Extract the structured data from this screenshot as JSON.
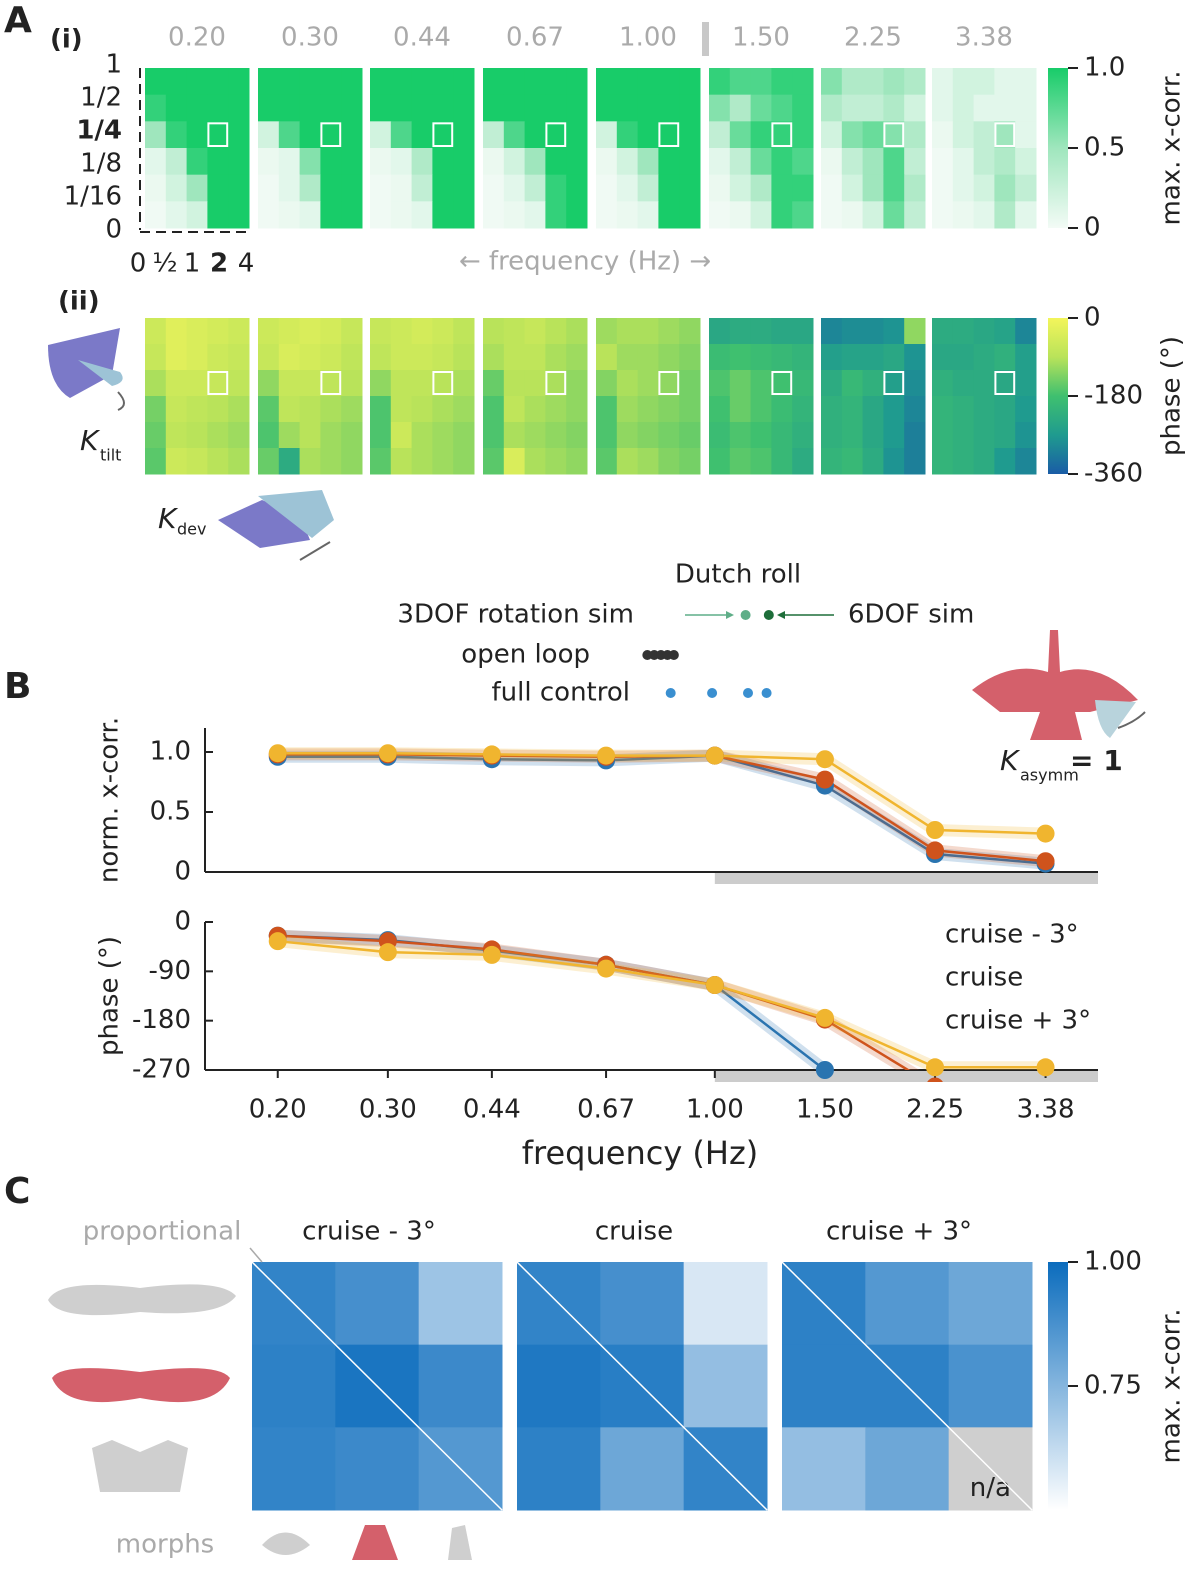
{
  "chart_data": [
    {
      "type": "heatmap",
      "label": "A",
      "sublabel": "(i)",
      "panel_titles": [
        "0.20",
        "0.30",
        "0.44",
        "0.67",
        "1.00",
        "1.50",
        "2.25",
        "3.38"
      ],
      "y_categories": [
        "1",
        "1/2",
        "1/4",
        "1/8",
        "1/16",
        "0"
      ],
      "x_categories": [
        "0",
        "½",
        "1",
        "2",
        "4"
      ],
      "xlabel": "← frequency (Hz) →",
      "colorbar_label": "max. x-corr.",
      "clim": [
        0,
        1
      ],
      "cticks": [
        {
          "value": 1,
          "label": "1.0"
        },
        0.5,
        0
      ],
      "colors": [
        "#f3fbf6",
        "#9fe6bd",
        "#18cc69"
      ],
      "panels": [
        [
          [
            1,
            1,
            1,
            1,
            1
          ],
          [
            0.9,
            1,
            1,
            1,
            1
          ],
          [
            0.5,
            0.9,
            1,
            1,
            1
          ],
          [
            0.1,
            0.3,
            0.9,
            1,
            1
          ],
          [
            0.05,
            0.2,
            0.5,
            1,
            1
          ],
          [
            0.02,
            0.1,
            0.2,
            1,
            1
          ]
        ],
        [
          [
            1,
            1,
            1,
            1,
            1
          ],
          [
            1,
            1,
            1,
            1,
            1
          ],
          [
            0.2,
            0.8,
            1,
            1,
            1
          ],
          [
            0.05,
            0.1,
            0.6,
            1,
            1
          ],
          [
            0.02,
            0.1,
            0.4,
            1,
            1
          ],
          [
            0.02,
            0.05,
            0.1,
            1,
            1
          ]
        ],
        [
          [
            1,
            1,
            1,
            1,
            1
          ],
          [
            1,
            1,
            1,
            1,
            1
          ],
          [
            0.2,
            0.8,
            1,
            1,
            1
          ],
          [
            0.05,
            0.1,
            0.4,
            1,
            1
          ],
          [
            0.02,
            0.05,
            0.3,
            1,
            1
          ],
          [
            0.02,
            0.05,
            0.1,
            1,
            1
          ]
        ],
        [
          [
            1,
            1,
            1,
            1,
            1
          ],
          [
            1,
            1,
            1,
            1,
            1
          ],
          [
            0.3,
            0.8,
            1,
            1,
            1
          ],
          [
            0.05,
            0.2,
            0.5,
            1,
            1
          ],
          [
            0.02,
            0.1,
            0.3,
            0.9,
            1
          ],
          [
            0.02,
            0.05,
            0.1,
            0.9,
            1
          ]
        ],
        [
          [
            1,
            1,
            1,
            1,
            1
          ],
          [
            1,
            1,
            1,
            1,
            1
          ],
          [
            0.2,
            0.9,
            1,
            1,
            1
          ],
          [
            0.05,
            0.2,
            0.5,
            1,
            1
          ],
          [
            0.02,
            0.1,
            0.3,
            1,
            1
          ],
          [
            0.02,
            0.05,
            0.1,
            1,
            1
          ]
        ],
        [
          [
            0.9,
            0.8,
            0.8,
            0.9,
            0.9
          ],
          [
            0.6,
            0.4,
            0.7,
            0.8,
            0.9
          ],
          [
            0.3,
            0.7,
            0.9,
            0.9,
            0.9
          ],
          [
            0.1,
            0.3,
            0.7,
            0.9,
            0.8
          ],
          [
            0.05,
            0.2,
            0.4,
            0.9,
            0.9
          ],
          [
            0.02,
            0.05,
            0.2,
            0.9,
            0.8
          ]
        ],
        [
          [
            0.6,
            0.4,
            0.4,
            0.5,
            0.4
          ],
          [
            0.4,
            0.3,
            0.3,
            0.4,
            0.2
          ],
          [
            0.2,
            0.6,
            0.7,
            0.6,
            0.4
          ],
          [
            0.05,
            0.3,
            0.5,
            0.8,
            0.3
          ],
          [
            0.02,
            0.2,
            0.5,
            0.8,
            0.4
          ],
          [
            0.02,
            0.05,
            0.2,
            0.7,
            0.3
          ]
        ],
        [
          [
            0.1,
            0.2,
            0.2,
            0.1,
            0.1
          ],
          [
            0.1,
            0.2,
            0.1,
            0.1,
            0.1
          ],
          [
            0.05,
            0.2,
            0.3,
            0.5,
            0.1
          ],
          [
            0.02,
            0.1,
            0.3,
            0.4,
            0.2
          ],
          [
            0.02,
            0.1,
            0.2,
            0.5,
            0.3
          ],
          [
            0.02,
            0.05,
            0.1,
            0.4,
            0.1
          ]
        ]
      ]
    },
    {
      "type": "heatmap",
      "sublabel": "(ii)",
      "colorbar_label": "phase (°)",
      "clim": [
        -360,
        0
      ],
      "cticks": [
        0,
        -180,
        -360
      ],
      "colors": [
        "#1a5ca6",
        "#1f9b8f",
        "#3fc06f",
        "#b9e35a",
        "#f3f55b"
      ],
      "annotations": [
        {
          "symbol": "K",
          "subscript": "tilt"
        },
        {
          "symbol": "K",
          "subscript": "dev"
        }
      ],
      "panels": [
        [
          [
            -60,
            -30,
            -40,
            -50,
            -60
          ],
          [
            -70,
            -30,
            -40,
            -60,
            -70
          ],
          [
            -100,
            -60,
            -60,
            -70,
            -80
          ],
          [
            -140,
            -70,
            -80,
            -90,
            -100
          ],
          [
            -150,
            -80,
            -90,
            -100,
            -110
          ],
          [
            -160,
            -60,
            -70,
            -90,
            -100
          ]
        ],
        [
          [
            -60,
            -50,
            -40,
            -50,
            -70
          ],
          [
            -70,
            -40,
            -50,
            -60,
            -80
          ],
          [
            -120,
            -70,
            -70,
            -80,
            -90
          ],
          [
            -160,
            -80,
            -90,
            -100,
            -110
          ],
          [
            -170,
            -110,
            -90,
            -110,
            -120
          ],
          [
            -150,
            -230,
            -100,
            -110,
            -120
          ]
        ],
        [
          [
            -70,
            -60,
            -50,
            -60,
            -80
          ],
          [
            -80,
            -60,
            -60,
            -70,
            -90
          ],
          [
            -120,
            -80,
            -80,
            -90,
            -100
          ],
          [
            -170,
            -80,
            -90,
            -100,
            -110
          ],
          [
            -170,
            -60,
            -100,
            -110,
            -120
          ],
          [
            -160,
            -90,
            -100,
            -110,
            -120
          ]
        ],
        [
          [
            -90,
            -80,
            -70,
            -90,
            -100
          ],
          [
            -100,
            -80,
            -80,
            -100,
            -110
          ],
          [
            -150,
            -90,
            -90,
            -100,
            -120
          ],
          [
            -170,
            -80,
            -100,
            -110,
            -120
          ],
          [
            -170,
            -100,
            -110,
            -120,
            -130
          ],
          [
            -160,
            -40,
            -100,
            -110,
            -120
          ]
        ],
        [
          [
            -110,
            -100,
            -100,
            -110,
            -120
          ],
          [
            -90,
            -110,
            -110,
            -120,
            -130
          ],
          [
            -130,
            -100,
            -110,
            -120,
            -140
          ],
          [
            -170,
            -110,
            -120,
            -130,
            -140
          ],
          [
            -170,
            -120,
            -130,
            -140,
            -150
          ],
          [
            -160,
            -100,
            -110,
            -130,
            -140
          ]
        ],
        [
          [
            -240,
            -230,
            -230,
            -240,
            -240
          ],
          [
            -190,
            -180,
            -190,
            -200,
            -210
          ],
          [
            -170,
            -150,
            -170,
            -180,
            -200
          ],
          [
            -180,
            -150,
            -170,
            -190,
            -210
          ],
          [
            -190,
            -170,
            -180,
            -200,
            -220
          ],
          [
            -180,
            -160,
            -170,
            -200,
            -230
          ]
        ],
        [
          [
            -300,
            -290,
            -290,
            -280,
            -120
          ],
          [
            -260,
            -250,
            -250,
            -240,
            -280
          ],
          [
            -230,
            -200,
            -220,
            -260,
            -290
          ],
          [
            -220,
            -210,
            -240,
            -270,
            -300
          ],
          [
            -220,
            -210,
            -240,
            -270,
            -310
          ],
          [
            -210,
            -200,
            -230,
            -280,
            -310
          ]
        ],
        [
          [
            -230,
            -230,
            -240,
            -250,
            -300
          ],
          [
            -240,
            -240,
            -230,
            -220,
            -260
          ],
          [
            -220,
            -230,
            -230,
            -240,
            -260
          ],
          [
            -210,
            -220,
            -230,
            -240,
            -270
          ],
          [
            -210,
            -220,
            -230,
            -240,
            -280
          ],
          [
            -210,
            -220,
            -230,
            -270,
            -300
          ]
        ]
      ]
    },
    {
      "type": "dot",
      "title": "Dutch roll",
      "xscale": "log",
      "xlim": [
        0.153,
        4.1
      ],
      "series": [
        {
          "name": "3DOF rotation sim",
          "color": "#5fae88",
          "x": [
            1.12
          ]
        },
        {
          "name": "6DOF sim",
          "color": "#1e6e3a",
          "x": [
            1.22
          ]
        },
        {
          "name": "open loop",
          "color": "#333333",
          "x": [
            0.78,
            0.8,
            0.82,
            0.84,
            0.86
          ]
        },
        {
          "name": "full control",
          "color": "#3a8fd0",
          "x": [
            0.85,
            0.99,
            1.13,
            1.21
          ]
        }
      ]
    },
    {
      "type": "line",
      "label": "B",
      "ylabel": "norm. x-corr.",
      "xscale": "log",
      "xlim": [
        0.153,
        4.1
      ],
      "x": [
        0.2,
        0.3,
        0.44,
        0.67,
        1.0,
        1.5,
        2.25,
        3.38
      ],
      "ylim": [
        0,
        1.2
      ],
      "yticks": [
        0,
        0.5,
        {
          "value": 1,
          "label": "1.0"
        }
      ],
      "annotation": {
        "symbol": "K",
        "subscript": "asymm",
        "text": "= 1"
      },
      "series": [
        {
          "color": "#2a74b0",
          "values": [
            0.96,
            0.96,
            0.94,
            0.93,
            0.97,
            0.72,
            0.15,
            0.07
          ]
        },
        {
          "color": "#cf531c",
          "values": [
            0.98,
            0.98,
            0.97,
            0.96,
            0.97,
            0.77,
            0.18,
            0.09
          ]
        },
        {
          "color": "#f0b52f",
          "values": [
            0.99,
            0.99,
            0.98,
            0.97,
            0.97,
            0.94,
            0.35,
            0.32
          ]
        }
      ]
    },
    {
      "type": "line",
      "ylabel": "phase (°)",
      "xlabel": "frequency (Hz)",
      "xscale": "log",
      "xlim": [
        0.153,
        4.1
      ],
      "x": [
        0.2,
        0.3,
        0.44,
        0.67,
        1.0,
        1.5,
        2.25,
        3.38
      ],
      "xticks": [
        {
          "value": 0.2,
          "label": "0.20"
        },
        {
          "value": 0.3,
          "label": "0.30"
        },
        {
          "value": 0.44,
          "label": "0.44"
        },
        {
          "value": 0.67,
          "label": "0.67"
        },
        {
          "value": 1.0,
          "label": "1.00"
        },
        {
          "value": 1.5,
          "label": "1.50"
        },
        {
          "value": 2.25,
          "label": "2.25"
        },
        {
          "value": 3.38,
          "label": "3.38"
        }
      ],
      "ylim": [
        -270,
        0
      ],
      "yticks": [
        0,
        -90,
        -180,
        -270
      ],
      "series": [
        {
          "name": "cruise - 3°",
          "color": "#2a74b0",
          "values": [
            -25,
            -33,
            -52,
            -78,
            -115,
            -270,
            null,
            null
          ]
        },
        {
          "name": "cruise",
          "color": "#cf531c",
          "values": [
            -25,
            -35,
            -50,
            -78,
            -115,
            -178,
            -300,
            null
          ]
        },
        {
          "name": "cruise + 3°",
          "color": "#f0b52f",
          "values": [
            -35,
            -55,
            -60,
            -85,
            -115,
            -175,
            -265,
            -265
          ]
        }
      ]
    },
    {
      "type": "heatmap",
      "label": "C",
      "row_label": "proportional",
      "col_label": "morphs",
      "na_label": "n/a",
      "panel_titles": [
        "cruise - 3°",
        "cruise",
        "cruise + 3°"
      ],
      "title_colors": [
        "#1f6fb0",
        "#c0501c",
        "#e9a520"
      ],
      "colorbar_label": "max. x-corr.",
      "clim": [
        0.5,
        1
      ],
      "cticks": [
        {
          "value": 1,
          "label": "1.00"
        },
        0.75
      ],
      "colors": [
        "#ffffff",
        "#0b6cbd"
      ],
      "panels": [
        [
          [
            0.92,
            0.88,
            0.7
          ],
          [
            0.93,
            0.97,
            0.9
          ],
          [
            0.92,
            0.9,
            0.85
          ]
        ],
        [
          [
            0.92,
            0.88,
            0.58
          ],
          [
            0.96,
            0.94,
            0.72
          ],
          [
            0.93,
            0.8,
            0.92
          ]
        ],
        [
          [
            0.93,
            0.85,
            0.8
          ],
          [
            0.93,
            0.93,
            0.87
          ],
          [
            0.72,
            0.8,
            null
          ]
        ]
      ]
    }
  ]
}
